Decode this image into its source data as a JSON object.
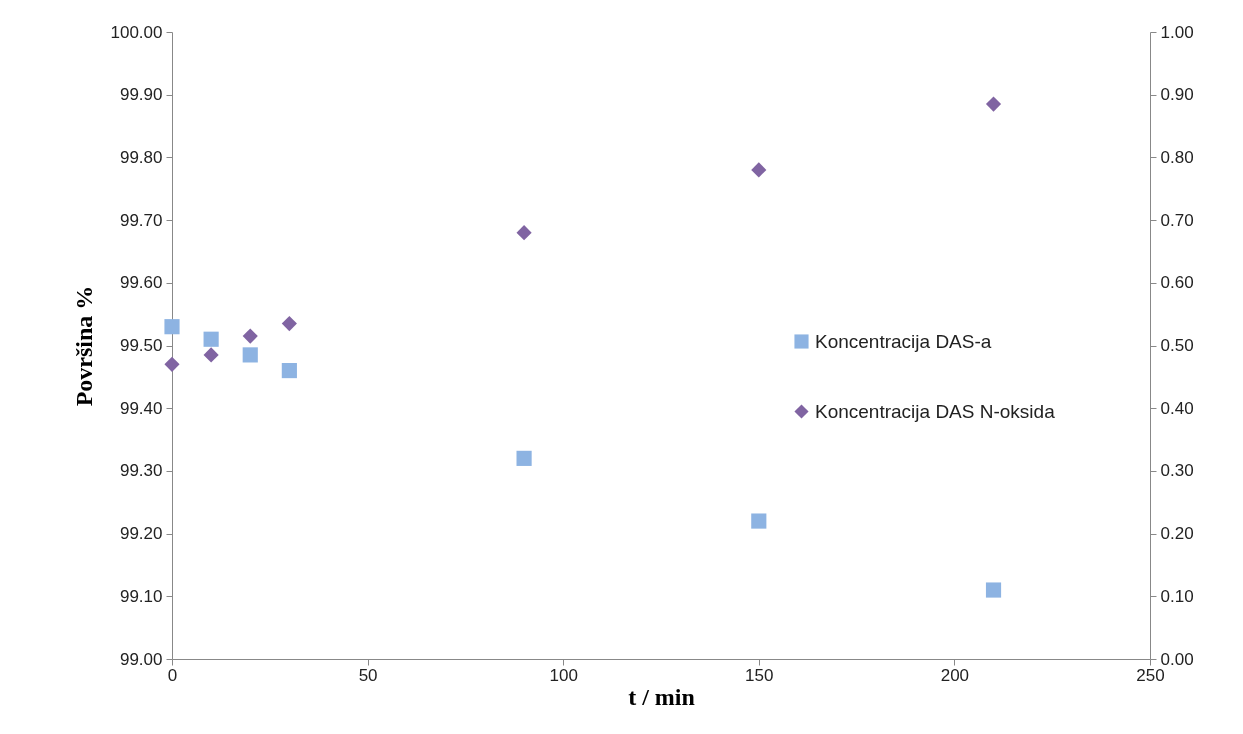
{
  "chart_data": {
    "type": "scatter",
    "xlabel": "t / min",
    "ylabel": "Površina %",
    "x": [
      0,
      10,
      20,
      30,
      90,
      150,
      210
    ],
    "series": [
      {
        "name": "Koncentracija DAS-a",
        "color": "#8db3e2",
        "marker": "square",
        "values": [
          99.53,
          99.51,
          99.485,
          99.46,
          99.32,
          99.22,
          99.11
        ]
      },
      {
        "name": "Koncentracija DAS N-oksida",
        "color": "#8064a2",
        "marker": "diamond",
        "axis": "y2",
        "values": [
          0.47,
          0.485,
          0.515,
          0.535,
          0.68,
          0.78,
          0.885
        ]
      }
    ],
    "xlim": [
      0,
      250
    ],
    "xticks": [
      0,
      50,
      100,
      150,
      200,
      250
    ],
    "ylim": [
      99,
      100
    ],
    "yticks": [
      {
        "value": 99,
        "label": "99.00"
      },
      {
        "value": 99.1,
        "label": "99.10"
      },
      {
        "value": 99.2,
        "label": "99.20"
      },
      {
        "value": 99.3,
        "label": "99.30"
      },
      {
        "value": 99.4,
        "label": "99.40"
      },
      {
        "value": 99.5,
        "label": "99.50"
      },
      {
        "value": 99.6,
        "label": "99.60"
      },
      {
        "value": 99.7,
        "label": "99.70"
      },
      {
        "value": 99.8,
        "label": "99.80"
      },
      {
        "value": 99.9,
        "label": "99.90"
      },
      {
        "value": 100,
        "label": "100.00"
      }
    ],
    "y2lim": [
      0,
      1
    ],
    "y2ticks": [
      {
        "value": 0,
        "label": "0.00"
      },
      {
        "value": 0.1,
        "label": "0.10"
      },
      {
        "value": 0.2,
        "label": "0.20"
      },
      {
        "value": 0.3,
        "label": "0.30"
      },
      {
        "value": 0.4,
        "label": "0.40"
      },
      {
        "value": 0.5,
        "label": "0.50"
      },
      {
        "value": 0.6,
        "label": "0.60"
      },
      {
        "value": 0.7,
        "label": "0.70"
      },
      {
        "value": 0.8,
        "label": "0.80"
      },
      {
        "value": 0.9,
        "label": "0.90"
      },
      {
        "value": 1,
        "label": "1.00"
      }
    ],
    "grid": false,
    "legend": "right"
  }
}
